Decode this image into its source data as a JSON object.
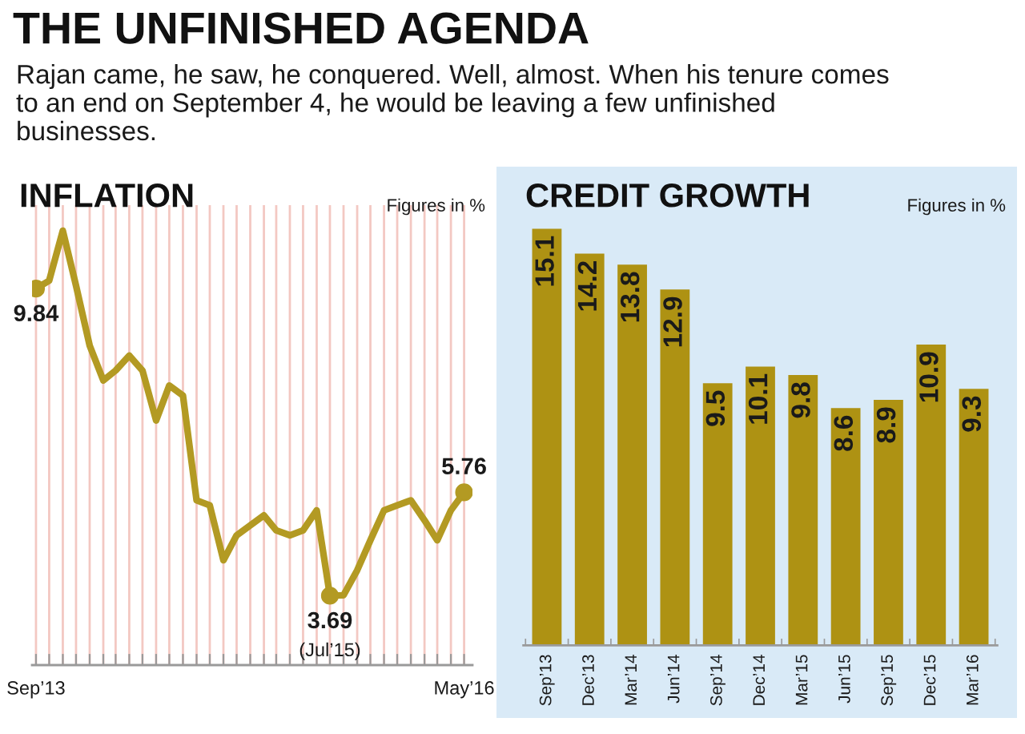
{
  "chart_data": [
    {
      "type": "other",
      "title": "THE UNFINISHED AGENDA",
      "subtitle": "Rajan came, he saw, he conquered. Well, almost. When his tenure comes\nto an end on September 4, he would be leaving a few unfinished\nbusinesses."
    },
    {
      "type": "line",
      "title": "INFLATION",
      "annotations": [
        "Figures in %",
        {
          "text": "(Jul’15)",
          "x": "2015-07",
          "y": 3.69
        }
      ],
      "x": [
        "2013-09",
        "2013-10",
        "2013-11",
        "2013-12",
        "2014-01",
        "2014-02",
        "2014-03",
        "2014-04",
        "2014-05",
        "2014-06",
        "2014-07",
        "2014-08",
        "2014-09",
        "2014-10",
        "2014-11",
        "2014-12",
        "2015-01",
        "2015-02",
        "2015-03",
        "2015-04",
        "2015-05",
        "2015-06",
        "2015-07",
        "2015-08",
        "2015-09",
        "2015-10",
        "2015-11",
        "2015-12",
        "2016-01",
        "2016-02",
        "2016-03",
        "2016-04",
        "2016-05"
      ],
      "values": [
        9.84,
        10.0,
        11.0,
        9.9,
        8.7,
        8.0,
        8.2,
        8.5,
        8.2,
        7.2,
        7.9,
        7.7,
        5.6,
        5.5,
        4.4,
        4.9,
        5.1,
        5.3,
        5.0,
        4.9,
        5.0,
        5.4,
        3.69,
        3.7,
        4.2,
        4.8,
        5.4,
        5.5,
        5.6,
        5.2,
        4.8,
        5.4,
        5.76
      ],
      "value_labels": [
        "9.84",
        null,
        null,
        null,
        null,
        null,
        null,
        null,
        null,
        null,
        null,
        null,
        null,
        null,
        null,
        null,
        null,
        null,
        null,
        null,
        null,
        null,
        "3.69",
        null,
        null,
        null,
        null,
        null,
        null,
        null,
        null,
        null,
        "5.76"
      ],
      "color": "#b39a23",
      "grid": "x",
      "tick_labels": "x",
      "xlim": [
        "2013-08-23",
        "2016-05-20"
      ],
      "xticks": [
        {
          "value": "2013-09",
          "label": "Sep’13"
        },
        {
          "value": "2013-10",
          "label": null
        },
        {
          "value": "2013-11",
          "label": null
        },
        {
          "value": "2013-12",
          "label": null
        },
        {
          "value": "2014-01",
          "label": null
        },
        {
          "value": "2014-02",
          "label": null
        },
        {
          "value": "2014-03",
          "label": null
        },
        {
          "value": "2014-04",
          "label": null
        },
        {
          "value": "2014-05",
          "label": null
        },
        {
          "value": "2014-06",
          "label": null
        },
        {
          "value": "2014-07",
          "label": null
        },
        {
          "value": "2014-08",
          "label": null
        },
        {
          "value": "2014-09",
          "label": null
        },
        {
          "value": "2014-10",
          "label": null
        },
        {
          "value": "2014-11",
          "label": null
        },
        {
          "value": "2014-12",
          "label": null
        },
        {
          "value": "2015-01",
          "label": null
        },
        {
          "value": "2015-02",
          "label": null
        },
        {
          "value": "2015-03",
          "label": null
        },
        {
          "value": "2015-04",
          "label": null
        },
        {
          "value": "2015-05",
          "label": null
        },
        {
          "value": "2015-06",
          "label": null
        },
        {
          "value": "2015-07",
          "label": null
        },
        {
          "value": "2015-08",
          "label": null
        },
        {
          "value": "2015-09",
          "label": null
        },
        {
          "value": "2015-10",
          "label": null
        },
        {
          "value": "2015-11",
          "label": null
        },
        {
          "value": "2015-12",
          "label": null
        },
        {
          "value": "2016-01",
          "label": null
        },
        {
          "value": "2016-02",
          "label": null
        },
        {
          "value": "2016-03",
          "label": null
        },
        {
          "value": "2016-04",
          "label": null
        },
        {
          "value": "2016-05",
          "label": "May’16"
        }
      ]
    },
    {
      "type": "bar",
      "title": "CREDIT GROWTH",
      "annotations": [
        "Figures in %"
      ],
      "categories": [
        "Sep’13",
        "Dec’13",
        "Mar’14",
        "Jun’14",
        "Sep’14",
        "Dec’14",
        "Mar’15",
        "Jun’15",
        "Sep’15",
        "Dec’15",
        "Mar’16"
      ],
      "values": [
        15.1,
        14.2,
        13.8,
        12.9,
        9.5,
        10.1,
        9.8,
        8.6,
        8.9,
        10.9,
        9.3
      ],
      "color": "#ae9213",
      "data_labels": true,
      "tick_labels": "x"
    }
  ]
}
